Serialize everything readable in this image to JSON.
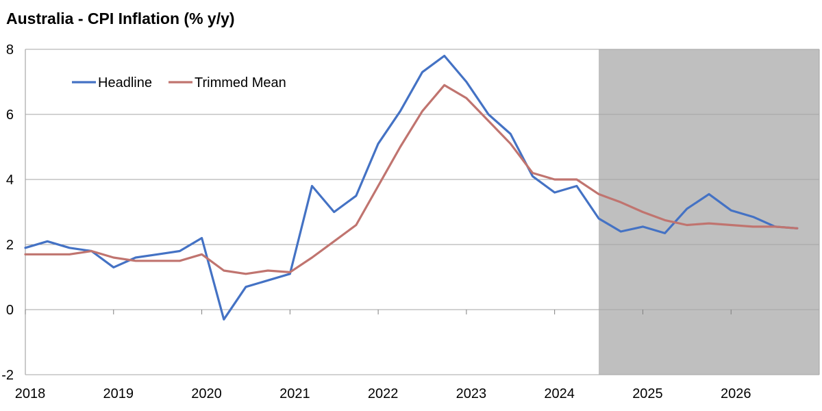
{
  "title": "Australia - CPI Inflation (% y/y)",
  "chart_data": {
    "type": "line",
    "title": "Australia - CPI Inflation (% y/y)",
    "xlabel": "",
    "ylabel": "",
    "x_ticks": [
      "2018",
      "2019",
      "2020",
      "2021",
      "2022",
      "2023",
      "2024",
      "2025",
      "2026"
    ],
    "y_ticks": [
      -2,
      0,
      2,
      4,
      6,
      8
    ],
    "ylim": [
      -2,
      8
    ],
    "xlim": [
      2018,
      2027
    ],
    "grid": "horizontal",
    "legend_position": "top-left",
    "forecast_shading": {
      "from": 2024.5,
      "to": 2027,
      "color": "#bfbfbf"
    },
    "series": [
      {
        "name": "Headline",
        "color": "#4472c4",
        "x": [
          2018.0,
          2018.25,
          2018.5,
          2018.75,
          2019.0,
          2019.25,
          2019.5,
          2019.75,
          2020.0,
          2020.25,
          2020.5,
          2020.75,
          2021.0,
          2021.25,
          2021.5,
          2021.75,
          2022.0,
          2022.25,
          2022.5,
          2022.75,
          2023.0,
          2023.25,
          2023.5,
          2023.75,
          2024.0,
          2024.25,
          2024.5,
          2024.75,
          2025.0,
          2025.25,
          2025.5,
          2025.75,
          2026.0,
          2026.25,
          2026.5,
          2026.75
        ],
        "values": [
          1.9,
          2.1,
          1.9,
          1.8,
          1.3,
          1.6,
          1.7,
          1.8,
          2.2,
          -0.3,
          0.7,
          0.9,
          1.1,
          3.8,
          3.0,
          3.5,
          5.1,
          6.1,
          7.3,
          7.8,
          7.0,
          6.0,
          5.4,
          4.1,
          3.6,
          3.8,
          2.8,
          2.4,
          2.55,
          2.35,
          3.1,
          3.55,
          3.05,
          2.85,
          2.55,
          2.5
        ]
      },
      {
        "name": "Trimmed Mean",
        "color": "#c0746f",
        "x": [
          2018.0,
          2018.25,
          2018.5,
          2018.75,
          2019.0,
          2019.25,
          2019.5,
          2019.75,
          2020.0,
          2020.25,
          2020.5,
          2020.75,
          2021.0,
          2021.25,
          2021.5,
          2021.75,
          2022.0,
          2022.25,
          2022.5,
          2022.75,
          2023.0,
          2023.25,
          2023.5,
          2023.75,
          2024.0,
          2024.25,
          2024.5,
          2024.75,
          2025.0,
          2025.25,
          2025.5,
          2025.75,
          2026.0,
          2026.25,
          2026.5,
          2026.75
        ],
        "values": [
          1.7,
          1.7,
          1.7,
          1.8,
          1.6,
          1.5,
          1.5,
          1.5,
          1.7,
          1.2,
          1.1,
          1.2,
          1.15,
          1.6,
          2.1,
          2.6,
          3.8,
          5.0,
          6.1,
          6.9,
          6.5,
          5.8,
          5.1,
          4.2,
          4.0,
          4.0,
          3.55,
          3.3,
          3.0,
          2.75,
          2.6,
          2.65,
          2.6,
          2.55,
          2.55,
          2.5
        ]
      }
    ]
  }
}
